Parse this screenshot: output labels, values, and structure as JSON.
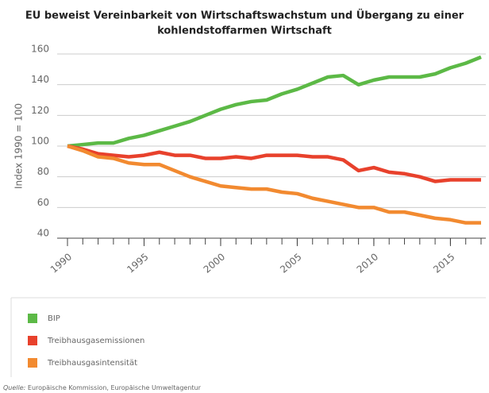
{
  "chart_data": {
    "type": "line",
    "title_lines": [
      "EU beweist Vereinbarkeit von Wirtschaftswachstum und Übergang zu einer",
      "kohlendstoffarmen Wirtschaft"
    ],
    "y_label": "Index 1990 = 100",
    "x": [
      1990,
      1991,
      1992,
      1993,
      1994,
      1995,
      1996,
      1997,
      1998,
      1999,
      2000,
      2001,
      2002,
      2003,
      2004,
      2005,
      2006,
      2007,
      2008,
      2009,
      2010,
      2011,
      2012,
      2013,
      2014,
      2015,
      2016,
      2017
    ],
    "series": [
      {
        "name": "BIP",
        "color": "#5cb946",
        "values": [
          100,
          101,
          102,
          102,
          105,
          107,
          110,
          113,
          116,
          120,
          124,
          127,
          129,
          130,
          134,
          137,
          141,
          145,
          146,
          140,
          143,
          145,
          145,
          145,
          147,
          151,
          154,
          158
        ]
      },
      {
        "name": "Treibhausgasemissionen",
        "color": "#e8412c",
        "values": [
          100,
          98,
          95,
          94,
          93,
          94,
          96,
          94,
          94,
          92,
          92,
          93,
          92,
          94,
          94,
          94,
          93,
          93,
          91,
          84,
          86,
          83,
          82,
          80,
          77,
          78,
          78,
          78
        ]
      },
      {
        "name": "Treibhausgasintensität",
        "color": "#f28a30",
        "values": [
          100,
          97,
          93,
          92,
          89,
          88,
          88,
          84,
          80,
          77,
          74,
          73,
          72,
          72,
          70,
          69,
          66,
          64,
          62,
          60,
          60,
          57,
          57,
          55,
          53,
          52,
          50,
          50
        ]
      }
    ],
    "xlim": [
      1990,
      2017
    ],
    "xticks": [
      1990,
      1995,
      2000,
      2005,
      2010,
      2015
    ],
    "ylim": [
      40,
      160
    ],
    "yticks": [
      40,
      60,
      80,
      100,
      120,
      140,
      160
    ],
    "grid": true,
    "source_label": "Quelle:",
    "source": "Europäische Kommission, Europäische Umweltagentur"
  }
}
